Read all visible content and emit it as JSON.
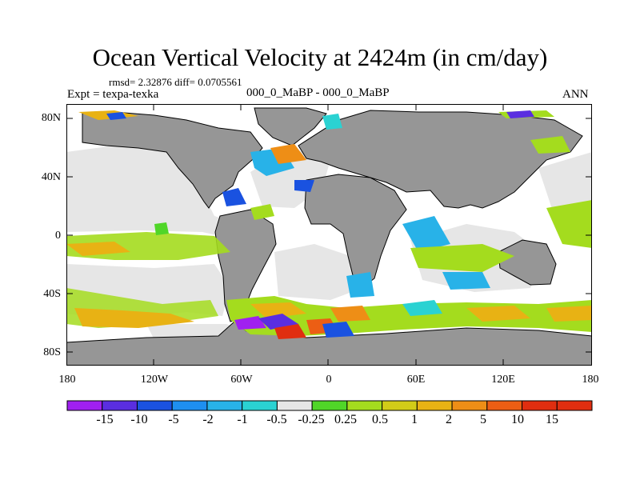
{
  "title": "Ocean Vertical Velocity at 2424m (in cm/day)",
  "stats": "rmsd= 2.32876 diff= 0.0705561",
  "experiment": "Expt = texpa-texka",
  "comparison": "000_0_MaBP - 000_0_MaBP",
  "period": "ANN",
  "y_axis_labels": [
    "80N",
    "40N",
    "0",
    "40S",
    "80S"
  ],
  "x_axis_labels": [
    "180",
    "120W",
    "60W",
    "0",
    "60E",
    "120E",
    "180"
  ],
  "colorbar": {
    "colors": [
      "#a020f0",
      "#5a2ee0",
      "#1a52e0",
      "#1e8ff0",
      "#28b2e8",
      "#2ad2d2",
      "#e6e6e6",
      "#50d628",
      "#a4dc1e",
      "#d2cc18",
      "#e8b214",
      "#ee8e16",
      "#ec5e14",
      "#e02e10"
    ],
    "labels": [
      "-15",
      "-10",
      "-5",
      "-2",
      "-1",
      "-0.5",
      "-0.25",
      "0.25",
      "0.5",
      "1",
      "2",
      "5",
      "10",
      "15"
    ]
  },
  "colors": {
    "land": "#969696",
    "near_zero": "#e6e6e6",
    "background": "#ffffff"
  }
}
